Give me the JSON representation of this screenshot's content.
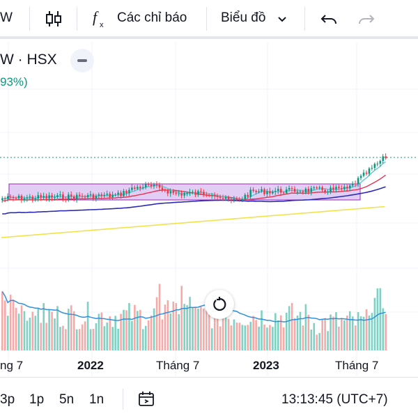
{
  "toolbar": {
    "symbol_fragment": "W",
    "indicators_label": "Các chỉ báo",
    "chart_type_label": "Biểu đồ",
    "icons": [
      "candlestick-icon",
      "function-icon",
      "chevron-down-icon",
      "undo-icon",
      "redo-icon"
    ]
  },
  "legend": {
    "symbol": "W · HSX",
    "change": "93%)"
  },
  "time_axis": {
    "labels": [
      "ng 7",
      "2022",
      "Tháng 7",
      "2023",
      "Tháng 7"
    ]
  },
  "bottom_bar": {
    "intervals": [
      "3p",
      "1p",
      "5n",
      "1n"
    ],
    "clock": "13:13:45 (UTC+7)"
  },
  "colors": {
    "up": "#089981",
    "down": "#f23645",
    "volume_up": "#7fd1c3",
    "volume_down": "#f7a9a7",
    "ma_fast": "#5fc6d9",
    "ma_mid": "#e5334b",
    "ma_slow": "#2b2bb8",
    "ma_long": "#f2e24a",
    "range_box": "#d6b8f0",
    "volume_ma": "#2f8fe0"
  },
  "chart_data": {
    "type": "candlestick",
    "x": [
      "2021-07",
      "2022-01",
      "2022-07",
      "2023-01",
      "2023-07"
    ],
    "price_box": {
      "start": "2021-07",
      "end": "2023-07"
    },
    "series": [],
    "volume_series": []
  }
}
